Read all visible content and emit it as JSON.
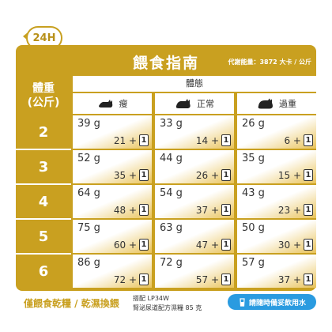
{
  "badge": "24H",
  "title": "餵食指南",
  "calorie": "代謝能量：3872 大卡 / 公斤",
  "header": {
    "weight_line1": "體重",
    "weight_line2": "(公斤)",
    "body_condition": "體態",
    "types": [
      "瘦",
      "正常",
      "過重"
    ]
  },
  "rows": [
    {
      "weight": "2",
      "cells": [
        {
          "grams": "39 g",
          "wet": "21 +"
        },
        {
          "grams": "33 g",
          "wet": "14 +"
        },
        {
          "grams": "26 g",
          "wet": "6 +"
        }
      ]
    },
    {
      "weight": "3",
      "cells": [
        {
          "grams": "52 g",
          "wet": "35 +"
        },
        {
          "grams": "44 g",
          "wet": "26 +"
        },
        {
          "grams": "35 g",
          "wet": "15 +"
        }
      ]
    },
    {
      "weight": "4",
      "cells": [
        {
          "grams": "64 g",
          "wet": "48 +"
        },
        {
          "grams": "54 g",
          "wet": "37 +"
        },
        {
          "grams": "43 g",
          "wet": "23 +"
        }
      ]
    },
    {
      "weight": "5",
      "cells": [
        {
          "grams": "75 g",
          "wet": "60 +"
        },
        {
          "grams": "63 g",
          "wet": "47 +"
        },
        {
          "grams": "50 g",
          "wet": "30 +"
        }
      ]
    },
    {
      "weight": "6",
      "cells": [
        {
          "grams": "86 g",
          "wet": "72 +"
        },
        {
          "grams": "72 g",
          "wet": "57 +"
        },
        {
          "grams": "57 g",
          "wet": "37 +"
        }
      ]
    }
  ],
  "can_count": "1",
  "footer": {
    "left": "僅餵食乾糧 / 乾濕換餵",
    "mid_line1": "搭配 LP34W",
    "mid_line2": "腎泌尿道配方濕糧 85 克",
    "water": "請隨時備妥飲用水"
  },
  "colors": {
    "gold": "#c9a020",
    "blue": "#2a9be0"
  }
}
